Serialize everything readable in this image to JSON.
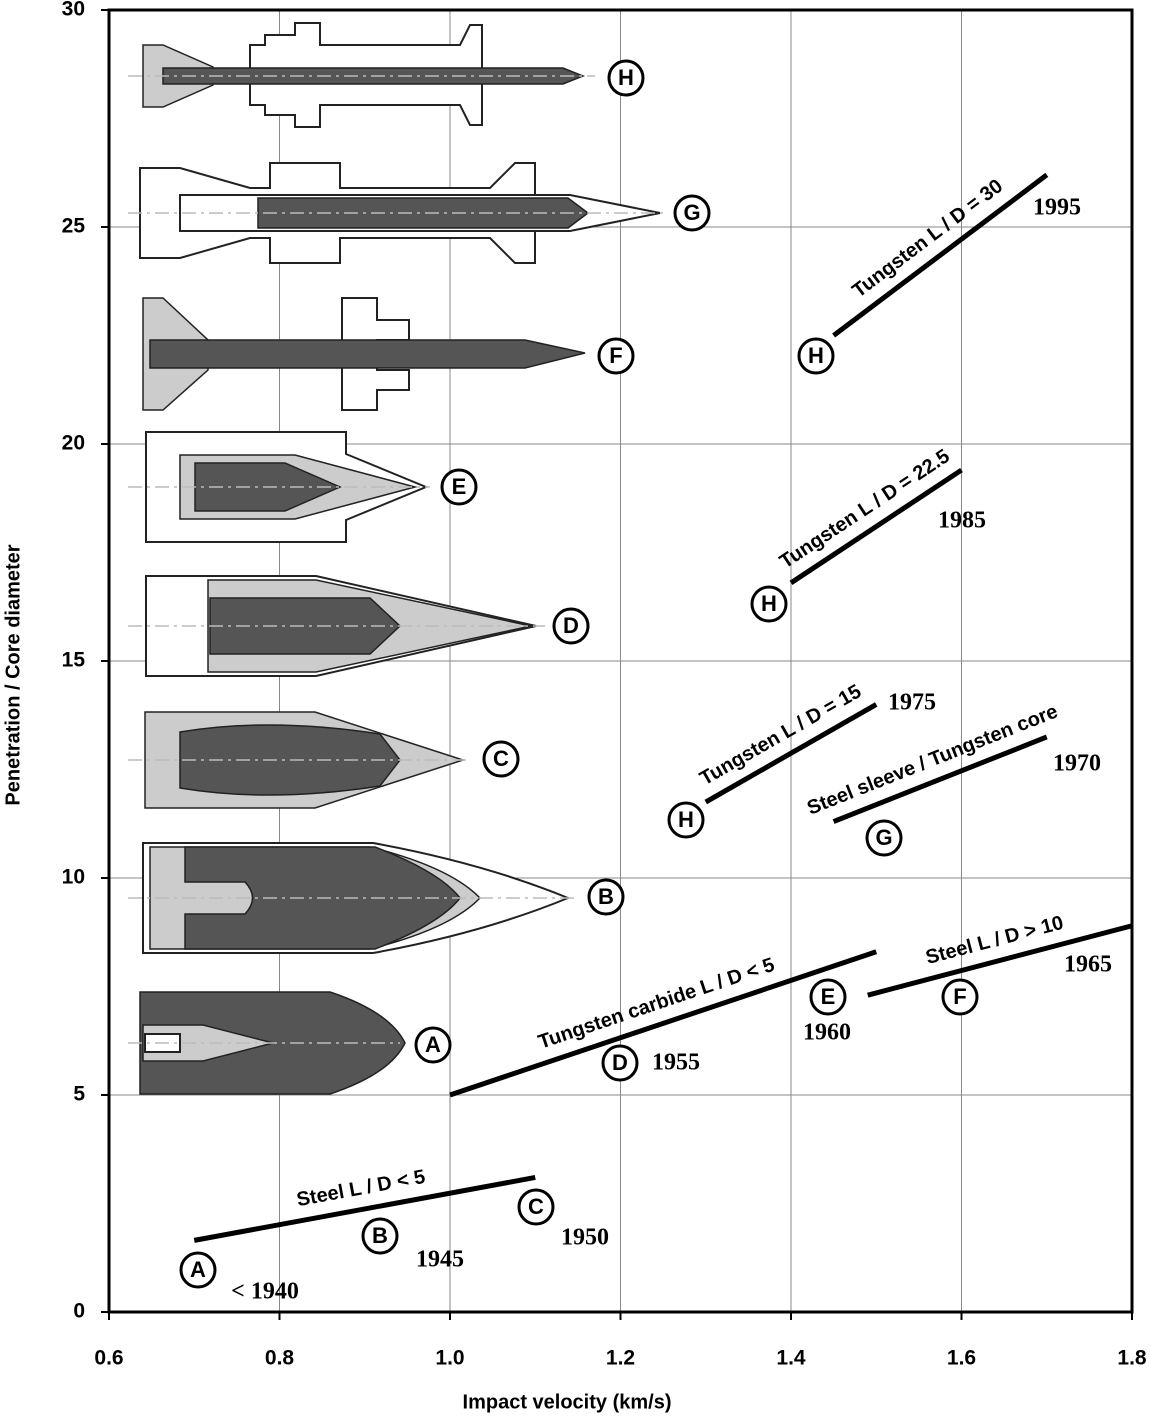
{
  "chart_data": {
    "type": "line",
    "x_label": "Impact velocity  (km/s)",
    "y_label": "Penetration / Core diameter",
    "xlim": [
      0.6,
      1.8
    ],
    "ylim": [
      0,
      30
    ],
    "xticks": [
      0.6,
      0.8,
      {
        "value": 1,
        "label": "1.0"
      },
      1.2,
      1.4,
      1.6,
      1.8
    ],
    "yticks": [
      0,
      5,
      10,
      15,
      20,
      25,
      30
    ],
    "grid": true,
    "series": [
      {
        "name": "Steel  L / D < 5",
        "color": "#000000",
        "x": [
          0.7,
          1.1
        ],
        "values": [
          1.65,
          3.1
        ]
      },
      {
        "name": "Tungsten carbide  L / D < 5",
        "color": "#000000",
        "x": [
          1.0,
          1.5
        ],
        "values": [
          5.0,
          8.3
        ]
      },
      {
        "name": "Steel  L / D > 10",
        "color": "#000000",
        "x": [
          1.49,
          1.8
        ],
        "values": [
          7.3,
          8.9
        ]
      },
      {
        "name": "Steel sleeve / Tungsten core",
        "color": "#000000",
        "x": [
          1.45,
          1.7
        ],
        "values": [
          11.3,
          13.25
        ]
      },
      {
        "name": "Tungsten L / D = 15",
        "color": "#000000",
        "x": [
          1.3,
          1.5
        ],
        "values": [
          11.75,
          14.0
        ]
      },
      {
        "name": "Tungsten L / D = 22.5",
        "color": "#000000",
        "x": [
          1.4,
          1.6
        ],
        "values": [
          16.8,
          19.4
        ]
      },
      {
        "name": "Tungsten L / D = 30",
        "color": "#000000",
        "x": [
          1.45,
          1.7
        ],
        "values": [
          22.5,
          26.2
        ]
      }
    ],
    "annotations": [
      "H",
      "G",
      "F",
      "E",
      "D",
      "C",
      "B",
      "A",
      "A",
      "< 1940",
      "B",
      "1945",
      "C",
      "1950",
      "D",
      "1955",
      "E",
      "1960",
      "F",
      "1965",
      "G",
      "1970",
      "H",
      "1975",
      "H",
      "1985",
      "H",
      "1995"
    ]
  }
}
